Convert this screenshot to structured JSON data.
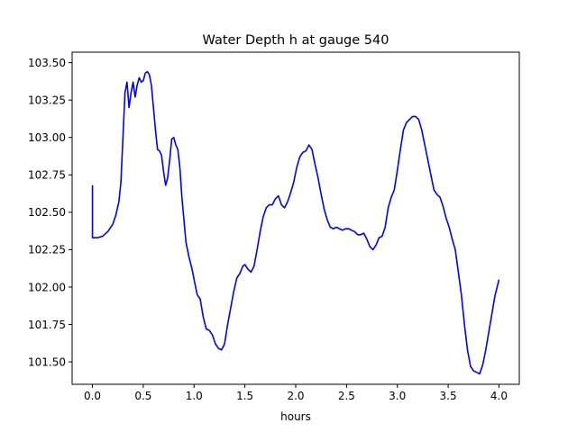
{
  "chart_data": {
    "type": "line",
    "title": "Water Depth h at gauge 540",
    "xlabel": "hours",
    "ylabel": "",
    "xlim": [
      -0.2,
      4.2
    ],
    "ylim": [
      101.35,
      103.57
    ],
    "xticks": [
      0.0,
      0.5,
      1.0,
      1.5,
      2.0,
      2.5,
      3.0,
      3.5,
      4.0
    ],
    "xtick_labels": [
      "0.0",
      "0.5",
      "1.0",
      "1.5",
      "2.0",
      "2.5",
      "3.0",
      "3.5",
      "4.0"
    ],
    "yticks": [
      101.5,
      101.75,
      102.0,
      102.25,
      102.5,
      102.75,
      103.0,
      103.25,
      103.5
    ],
    "ytick_labels": [
      "101.50",
      "101.75",
      "102.00",
      "102.25",
      "102.50",
      "102.75",
      "103.00",
      "103.25",
      "103.50"
    ],
    "grid": false,
    "series": [
      {
        "color": "#0000ff",
        "x": [
          0.0,
          0.0,
          0.05,
          0.1,
          0.15,
          0.2,
          0.23,
          0.26,
          0.28,
          0.3,
          0.32,
          0.34,
          0.36,
          0.38,
          0.4,
          0.42,
          0.44,
          0.46,
          0.48,
          0.5,
          0.52,
          0.54,
          0.56,
          0.58,
          0.6,
          0.62,
          0.64,
          0.66,
          0.68,
          0.7,
          0.72,
          0.74,
          0.76,
          0.78,
          0.8,
          0.82,
          0.84,
          0.86,
          0.88,
          0.9,
          0.92,
          0.95,
          0.98,
          1.0,
          1.03,
          1.06,
          1.09,
          1.12,
          1.15,
          1.18,
          1.21,
          1.24,
          1.27,
          1.3,
          1.33,
          1.36,
          1.39,
          1.42,
          1.45,
          1.48,
          1.5,
          1.53,
          1.56,
          1.59,
          1.62,
          1.65,
          1.68,
          1.71,
          1.74,
          1.77,
          1.8,
          1.83,
          1.86,
          1.89,
          1.92,
          1.95,
          1.98,
          2.01,
          2.04,
          2.07,
          2.1,
          2.13,
          2.16,
          2.19,
          2.22,
          2.25,
          2.28,
          2.31,
          2.34,
          2.37,
          2.4,
          2.43,
          2.46,
          2.49,
          2.52,
          2.55,
          2.58,
          2.61,
          2.64,
          2.67,
          2.7,
          2.73,
          2.76,
          2.79,
          2.82,
          2.85,
          2.88,
          2.91,
          2.94,
          2.97,
          3.0,
          3.03,
          3.06,
          3.09,
          3.12,
          3.15,
          3.18,
          3.21,
          3.24,
          3.27,
          3.3,
          3.33,
          3.36,
          3.39,
          3.42,
          3.45,
          3.48,
          3.51,
          3.54,
          3.57,
          3.6,
          3.63,
          3.66,
          3.69,
          3.72,
          3.75,
          3.78,
          3.81,
          3.84,
          3.87,
          3.9,
          3.93,
          3.96,
          4.0
        ],
        "y": [
          102.68,
          102.33,
          102.33,
          102.34,
          102.37,
          102.42,
          102.48,
          102.57,
          102.7,
          103.0,
          103.3,
          103.37,
          103.2,
          103.3,
          103.37,
          103.27,
          103.35,
          103.4,
          103.37,
          103.38,
          103.43,
          103.44,
          103.42,
          103.35,
          103.2,
          103.05,
          102.92,
          102.91,
          102.88,
          102.77,
          102.68,
          102.73,
          102.85,
          102.99,
          103.0,
          102.95,
          102.92,
          102.8,
          102.6,
          102.45,
          102.3,
          102.2,
          102.12,
          102.05,
          101.95,
          101.92,
          101.8,
          101.72,
          101.71,
          101.68,
          101.62,
          101.59,
          101.58,
          101.62,
          101.75,
          101.86,
          101.97,
          102.06,
          102.09,
          102.14,
          102.15,
          102.12,
          102.1,
          102.14,
          102.25,
          102.37,
          102.47,
          102.53,
          102.55,
          102.55,
          102.59,
          102.61,
          102.55,
          102.53,
          102.57,
          102.63,
          102.7,
          102.8,
          102.87,
          102.9,
          102.91,
          102.95,
          102.92,
          102.82,
          102.73,
          102.62,
          102.52,
          102.45,
          102.4,
          102.39,
          102.4,
          102.39,
          102.38,
          102.39,
          102.39,
          102.38,
          102.37,
          102.35,
          102.35,
          102.36,
          102.32,
          102.27,
          102.25,
          102.28,
          102.33,
          102.34,
          102.4,
          102.53,
          102.6,
          102.65,
          102.78,
          102.92,
          103.05,
          103.1,
          103.12,
          103.14,
          103.14,
          103.12,
          103.05,
          102.95,
          102.85,
          102.75,
          102.65,
          102.62,
          102.6,
          102.54,
          102.46,
          102.4,
          102.32,
          102.25,
          102.1,
          101.95,
          101.75,
          101.58,
          101.47,
          101.44,
          101.43,
          101.42,
          101.48,
          101.58,
          101.7,
          101.82,
          101.94,
          102.05
        ]
      }
    ]
  }
}
